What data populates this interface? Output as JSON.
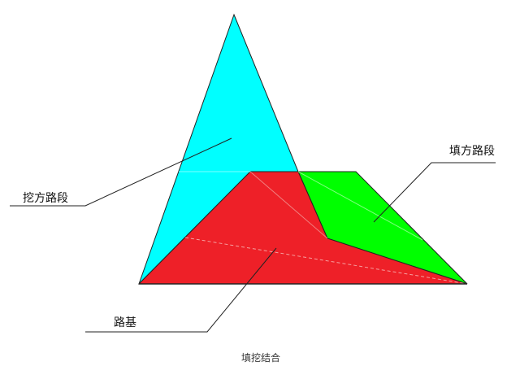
{
  "labels": {
    "cut_section": "挖方路段",
    "fill_section": "填方路段",
    "subgrade": "路基"
  },
  "caption": "填挖结合",
  "colors": {
    "cut": "#00ffff",
    "fill": "#00ff00",
    "subgrade": "#ee2028",
    "outline": "#222222"
  }
}
